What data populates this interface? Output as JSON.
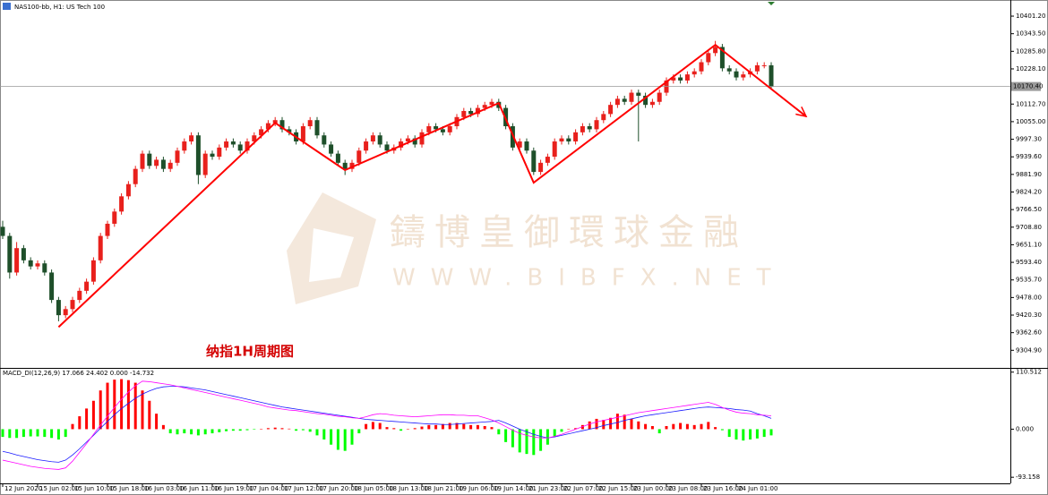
{
  "header": {
    "symbol": "NAS100-bb, H1: US Tech 100"
  },
  "watermark": {
    "title": "鑄博皇御環球金融",
    "url": "WWW.BIBFX.NET"
  },
  "chart_data": [
    {
      "type": "candlestick",
      "annotation": "纳指1H周期图",
      "bull_color": "#e8201c",
      "bear_color": "#1e4f2a",
      "categories": [
        "12 Jun 2020",
        null,
        null,
        null,
        null,
        "15 Jun 02:00",
        null,
        null,
        null,
        null,
        "15 Jun 10:00",
        null,
        null,
        null,
        null,
        "15 Jun 18:00",
        null,
        null,
        null,
        null,
        "16 Jun 03:00",
        null,
        null,
        null,
        null,
        "16 Jun 11:00",
        null,
        null,
        null,
        null,
        "16 Jun 19:00",
        null,
        null,
        null,
        null,
        "17 Jun 04:00",
        null,
        null,
        null,
        null,
        "17 Jun 12:00",
        null,
        null,
        null,
        null,
        "17 Jun 20:00",
        null,
        null,
        null,
        null,
        "18 Jun 05:00",
        null,
        null,
        null,
        null,
        "18 Jun 13:00",
        null,
        null,
        null,
        null,
        "18 Jun 21:00",
        null,
        null,
        null,
        null,
        "19 Jun 06:00",
        null,
        null,
        null,
        null,
        "19 Jun 14:00",
        null,
        null,
        null,
        null,
        "21 Jun 23:00",
        null,
        null,
        null,
        null,
        "22 Jun 07:00",
        null,
        null,
        null,
        null,
        "22 Jun 15:00",
        null,
        null,
        null,
        null,
        "23 Jun 00:00",
        null,
        null,
        null,
        null,
        "23 Jun 08:00",
        null,
        null,
        null,
        null,
        "23 Jun 16:00",
        null,
        null,
        null,
        null,
        "24 Jun 01:00",
        null,
        null,
        null,
        null,
        null
      ],
      "ohlc": [
        [
          9710,
          9730,
          9670,
          9680
        ],
        [
          9680,
          9690,
          9540,
          9560
        ],
        [
          9560,
          9660,
          9550,
          9640
        ],
        [
          9640,
          9650,
          9590,
          9600
        ],
        [
          9600,
          9610,
          9570,
          9580
        ],
        [
          9580,
          9600,
          9570,
          9590
        ],
        [
          9590,
          9600,
          9550,
          9560
        ],
        [
          9560,
          9570,
          9460,
          9470
        ],
        [
          9470,
          9480,
          9400,
          9420
        ],
        [
          9420,
          9450,
          9410,
          9440
        ],
        [
          9440,
          9480,
          9430,
          9470
        ],
        [
          9470,
          9510,
          9460,
          9500
        ],
        [
          9500,
          9540,
          9490,
          9530
        ],
        [
          9530,
          9610,
          9520,
          9600
        ],
        [
          9600,
          9690,
          9590,
          9680
        ],
        [
          9680,
          9730,
          9670,
          9720
        ],
        [
          9720,
          9770,
          9710,
          9760
        ],
        [
          9760,
          9820,
          9750,
          9810
        ],
        [
          9810,
          9860,
          9800,
          9850
        ],
        [
          9850,
          9910,
          9840,
          9900
        ],
        [
          9900,
          9960,
          9890,
          9950
        ],
        [
          9950,
          9960,
          9900,
          9910
        ],
        [
          9910,
          9940,
          9900,
          9930
        ],
        [
          9930,
          9940,
          9890,
          9900
        ],
        [
          9900,
          9930,
          9890,
          9920
        ],
        [
          9920,
          9970,
          9910,
          9960
        ],
        [
          9960,
          10000,
          9950,
          9990
        ],
        [
          9990,
          10020,
          9980,
          10010
        ],
        [
          10010,
          10020,
          9850,
          9880
        ],
        [
          9880,
          9960,
          9870,
          9950
        ],
        [
          9950,
          9960,
          9930,
          9940
        ],
        [
          9940,
          9980,
          9930,
          9970
        ],
        [
          9970,
          10000,
          9960,
          9990
        ],
        [
          9990,
          10000,
          9970,
          9980
        ],
        [
          9980,
          9990,
          9950,
          9960
        ],
        [
          9960,
          10000,
          9950,
          9990
        ],
        [
          9990,
          10020,
          9980,
          10010
        ],
        [
          10010,
          10040,
          10000,
          10030
        ],
        [
          10030,
          10060,
          10020,
          10050
        ],
        [
          10050,
          10070,
          10040,
          10060
        ],
        [
          10060,
          10070,
          10020,
          10030
        ],
        [
          10030,
          10040,
          10010,
          10020
        ],
        [
          10020,
          10030,
          9980,
          9990
        ],
        [
          9990,
          10050,
          9980,
          10040
        ],
        [
          10040,
          10070,
          10030,
          10060
        ],
        [
          10060,
          10070,
          10000,
          10010
        ],
        [
          10010,
          10020,
          9970,
          9980
        ],
        [
          9980,
          9990,
          9940,
          9950
        ],
        [
          9950,
          9960,
          9910,
          9920
        ],
        [
          9920,
          9930,
          9880,
          9900
        ],
        [
          9900,
          9930,
          9890,
          9920
        ],
        [
          9920,
          9970,
          9910,
          9960
        ],
        [
          9960,
          10000,
          9950,
          9990
        ],
        [
          9990,
          10020,
          9980,
          10010
        ],
        [
          10010,
          10020,
          9970,
          9980
        ],
        [
          9980,
          9990,
          9950,
          9960
        ],
        [
          9960,
          9980,
          9950,
          9970
        ],
        [
          9970,
          10000,
          9960,
          9990
        ],
        [
          9990,
          10010,
          9980,
          10000
        ],
        [
          10000,
          10010,
          9970,
          9980
        ],
        [
          9980,
          10030,
          9970,
          10020
        ],
        [
          10020,
          10050,
          10010,
          10040
        ],
        [
          10040,
          10050,
          10020,
          10030
        ],
        [
          10030,
          10040,
          10010,
          10020
        ],
        [
          10020,
          10050,
          10010,
          10040
        ],
        [
          10040,
          10080,
          10030,
          10070
        ],
        [
          10070,
          10100,
          10060,
          10090
        ],
        [
          10090,
          10100,
          10070,
          10080
        ],
        [
          10080,
          10110,
          10070,
          10100
        ],
        [
          10100,
          10120,
          10090,
          10110
        ],
        [
          10110,
          10130,
          10100,
          10120
        ],
        [
          10120,
          10130,
          10090,
          10100
        ],
        [
          10100,
          10110,
          10030,
          10040
        ],
        [
          10040,
          10050,
          9960,
          9970
        ],
        [
          9970,
          10000,
          9960,
          9990
        ],
        [
          9990,
          10000,
          9950,
          9960
        ],
        [
          9960,
          9970,
          9880,
          9890
        ],
        [
          9890,
          9930,
          9880,
          9920
        ],
        [
          9920,
          9950,
          9910,
          9940
        ],
        [
          9940,
          10000,
          9930,
          9990
        ],
        [
          9990,
          10010,
          9980,
          10000
        ],
        [
          10000,
          10010,
          9980,
          9990
        ],
        [
          9990,
          10030,
          9980,
          10020
        ],
        [
          10020,
          10050,
          10010,
          10040
        ],
        [
          10040,
          10050,
          10020,
          10030
        ],
        [
          10030,
          10070,
          10020,
          10060
        ],
        [
          10060,
          10090,
          10050,
          10080
        ],
        [
          10080,
          10120,
          10070,
          10110
        ],
        [
          10110,
          10140,
          10100,
          10130
        ],
        [
          10130,
          10140,
          10110,
          10120
        ],
        [
          10120,
          10160,
          10110,
          10150
        ],
        [
          10150,
          10160,
          9990,
          10140
        ],
        [
          10140,
          10150,
          10100,
          10110
        ],
        [
          10110,
          10130,
          10100,
          10120
        ],
        [
          10120,
          10160,
          10110,
          10150
        ],
        [
          10150,
          10200,
          10140,
          10190
        ],
        [
          10190,
          10210,
          10180,
          10200
        ],
        [
          10200,
          10210,
          10180,
          10190
        ],
        [
          10190,
          10220,
          10180,
          10210
        ],
        [
          10210,
          10230,
          10200,
          10220
        ],
        [
          10220,
          10260,
          10210,
          10250
        ],
        [
          10250,
          10290,
          10240,
          10280
        ],
        [
          10280,
          10320,
          10270,
          10300
        ],
        [
          10300,
          10310,
          10220,
          10230
        ],
        [
          10230,
          10240,
          10210,
          10220
        ],
        [
          10220,
          10230,
          10190,
          10200
        ],
        [
          10200,
          10220,
          10190,
          10210
        ],
        [
          10210,
          10230,
          10200,
          10220
        ],
        [
          10220,
          10250,
          10210,
          10240
        ],
        [
          10240,
          10250,
          10230,
          10240
        ],
        [
          10240,
          10250,
          10160,
          10170
        ]
      ],
      "ylim": [
        9250,
        10451.2
      ],
      "yticks": [
        {
          "value": 10401.2,
          "label": "10401.20"
        },
        {
          "value": 10343.5,
          "label": "10343.50"
        },
        {
          "value": 10285.8,
          "label": "10285.80"
        },
        {
          "value": 10228.1,
          "label": "10228.10"
        },
        {
          "value": 10112.7,
          "label": "10112.70"
        },
        {
          "value": 10055,
          "label": "10055.00"
        },
        {
          "value": 9997.3,
          "label": "9997.30"
        },
        {
          "value": 9939.6,
          "label": "9939.60"
        },
        {
          "value": 9881.9,
          "label": "9881.90"
        },
        {
          "value": 9824.2,
          "label": "9824.20"
        },
        {
          "value": 9766.5,
          "label": "9766.50"
        },
        {
          "value": 9708.8,
          "label": "9708.80"
        },
        {
          "value": 9651.1,
          "label": "9651.10"
        },
        {
          "value": 9593.4,
          "label": "9593.40"
        },
        {
          "value": 9535.7,
          "label": "9535.70"
        },
        {
          "value": 9478,
          "label": "9478.00"
        },
        {
          "value": 9420.3,
          "label": "9420.30"
        },
        {
          "value": 9362.6,
          "label": "9362.60"
        },
        {
          "value": 9304.9,
          "label": "9304.90"
        }
      ],
      "current_price": {
        "value": 10170.4,
        "label": "10170.40"
      },
      "trend_line": {
        "color": "#ff0000",
        "points": [
          [
            8,
            9381
          ],
          [
            39,
            10051
          ],
          [
            49,
            9896
          ],
          [
            71,
            10116
          ],
          [
            76,
            9855
          ],
          [
            102,
            10307
          ],
          [
            115,
            10072
          ]
        ]
      }
    },
    {
      "type": "macd",
      "title": "MACD_DI(12,26,9) 17.066 24.402 0.000 -14.732",
      "ylim": [
        -105,
        117
      ],
      "yticks": [
        110.512,
        {
          "value": 0,
          "label": "0.000"
        },
        -93.158
      ],
      "histogram": {
        "up_color": "#ff0000",
        "down_color": "#00ff00",
        "values": [
          -15,
          -17,
          -17,
          -15,
          -14,
          -14,
          -15,
          -17,
          -20,
          -15,
          10,
          25,
          40,
          55,
          75,
          90,
          96,
          97,
          95,
          90,
          75,
          55,
          30,
          8,
          -8,
          -10,
          -8,
          -10,
          -12,
          -10,
          -8,
          -6,
          -4,
          -3,
          -3,
          -2,
          -1,
          0,
          2,
          3,
          2,
          1,
          -3,
          -2,
          -5,
          -12,
          -20,
          -30,
          -40,
          -42,
          -30,
          -8,
          10,
          14,
          12,
          4,
          2,
          -3,
          0,
          2,
          5,
          8,
          8,
          10,
          12,
          12,
          10,
          8,
          8,
          6,
          4,
          -10,
          -25,
          -35,
          -45,
          -48,
          -50,
          -42,
          -30,
          -15,
          -5,
          0,
          2,
          8,
          15,
          20,
          18,
          22,
          30,
          28,
          20,
          15,
          10,
          6,
          -8,
          6,
          10,
          12,
          10,
          8,
          10,
          14,
          4,
          -2,
          -15,
          -20,
          -22,
          -20,
          -18,
          -15,
          -12
        ]
      },
      "series": [
        {
          "color": "#1a1aff",
          "values": [
            -43,
            -46,
            -50,
            -53,
            -56,
            -59,
            -61,
            -63,
            -64,
            -60,
            -50,
            -38,
            -25,
            -12,
            2,
            15,
            28,
            40,
            50,
            60,
            68,
            74,
            79,
            82,
            83,
            83,
            82,
            80,
            78,
            76,
            73,
            70,
            67,
            64,
            61,
            58,
            55,
            52,
            49,
            46,
            43,
            41,
            39,
            37,
            35,
            33,
            31,
            29,
            27,
            25,
            23,
            21,
            19,
            18,
            17,
            16,
            15,
            14,
            13,
            12,
            11,
            10,
            10,
            9,
            9,
            10,
            11,
            12,
            13,
            14,
            15,
            17,
            12,
            6,
            0,
            -5,
            -10,
            -14,
            -17,
            -15,
            -12,
            -9,
            -6,
            -3,
            0,
            3,
            7,
            10,
            13,
            17,
            20,
            23,
            26,
            28,
            30,
            32,
            34,
            36,
            38,
            40,
            42,
            43,
            42,
            41,
            40,
            38,
            37,
            35,
            30,
            26,
            21
          ]
        },
        {
          "color": "#ff00ff",
          "values": [
            -60,
            -63,
            -66,
            -69,
            -72,
            -74,
            -76,
            -77,
            -78,
            -75,
            -62,
            -45,
            -28,
            -10,
            8,
            25,
            42,
            58,
            72,
            84,
            93,
            92,
            90,
            88,
            86,
            83,
            80,
            77,
            74,
            71,
            68,
            65,
            62,
            59,
            56,
            53,
            50,
            47,
            43,
            41,
            39,
            37,
            36,
            34,
            32,
            30,
            29,
            27,
            25,
            24,
            22,
            21,
            24,
            28,
            30,
            29,
            27,
            26,
            25,
            24,
            25,
            26,
            27,
            28,
            28,
            27,
            27,
            26,
            26,
            22,
            18,
            12,
            5,
            -2,
            -8,
            -12,
            -15,
            -17,
            -17,
            -14,
            -10,
            -5,
            0,
            5,
            10,
            14,
            17,
            20,
            23,
            26,
            29,
            32,
            34,
            36,
            38,
            40,
            42,
            44,
            46,
            48,
            50,
            52,
            48,
            42,
            37,
            33,
            31,
            30,
            28,
            27,
            26
          ]
        }
      ]
    }
  ]
}
